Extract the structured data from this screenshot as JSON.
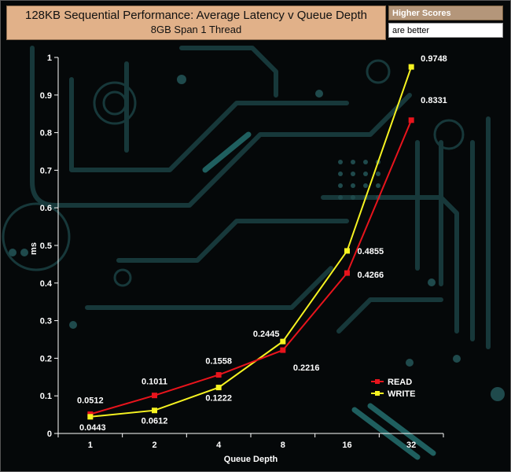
{
  "header": {
    "title": "128KB Sequential Performance: Average Latency v Queue Depth",
    "subtitle": "8GB Span 1 Thread",
    "note_top": "Higher Scores",
    "note_bottom": "are better"
  },
  "colors": {
    "read": "#e8141c",
    "write": "#f6f321",
    "background": "#050809",
    "circuit": "#17383a",
    "circuit_accent": "#1f5f5f"
  },
  "chart_data": {
    "type": "line",
    "title": "128KB Sequential Performance: Average Latency v Queue Depth",
    "subtitle": "8GB Span 1 Thread",
    "xlabel": "Queue Depth",
    "ylabel": "ms",
    "categories": [
      "1",
      "2",
      "4",
      "8",
      "16",
      "32"
    ],
    "ylim": [
      0,
      1
    ],
    "yticks": [
      "0",
      "0.1",
      "0.2",
      "0.3",
      "0.4",
      "0.5",
      "0.6",
      "0.7",
      "0.8",
      "0.9",
      "1"
    ],
    "grid": false,
    "legend_position": "bottom-right",
    "series": [
      {
        "name": "READ",
        "color": "#e8141c",
        "values": [
          0.0512,
          0.1011,
          0.1558,
          0.2216,
          0.4266,
          0.8331
        ],
        "labels": [
          "0.0512",
          "0.1011",
          "0.1558",
          "0.2216",
          "0.4266",
          "0.8331"
        ]
      },
      {
        "name": "WRITE",
        "color": "#f6f321",
        "values": [
          0.0443,
          0.0612,
          0.1222,
          0.2445,
          0.4855,
          0.9748
        ],
        "labels": [
          "0.0443",
          "0.0612",
          "0.1222",
          "0.2445",
          "0.4855",
          "0.9748"
        ]
      }
    ]
  }
}
